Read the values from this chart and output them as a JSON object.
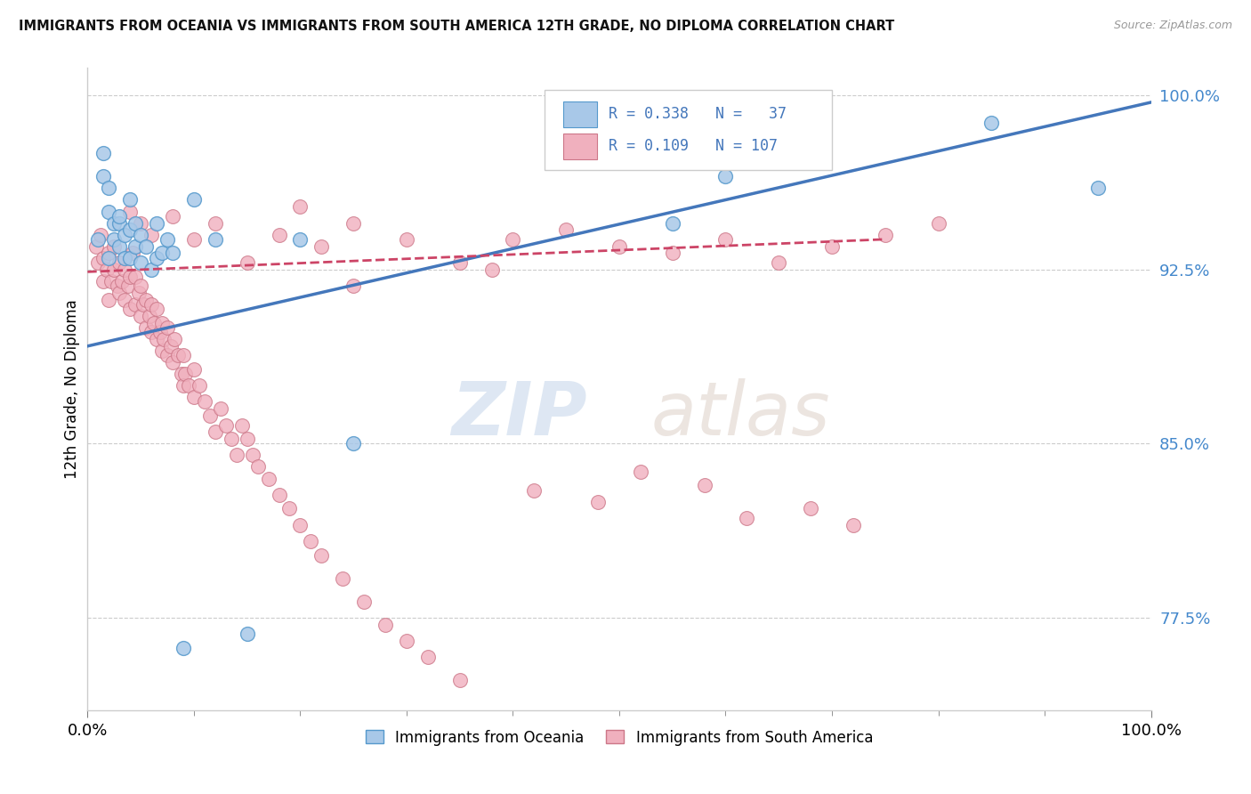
{
  "title": "IMMIGRANTS FROM OCEANIA VS IMMIGRANTS FROM SOUTH AMERICA 12TH GRADE, NO DIPLOMA CORRELATION CHART",
  "source": "Source: ZipAtlas.com",
  "xlabel_bottom": "Immigrants from Oceania",
  "xlabel_bottom2": "Immigrants from South America",
  "ylabel": "12th Grade, No Diploma",
  "xmin": 0.0,
  "xmax": 1.0,
  "ymin": 0.735,
  "ymax": 1.012,
  "yticks_right": [
    0.775,
    0.85,
    0.925,
    1.0
  ],
  "ytick_labels_right": [
    "77.5%",
    "85.0%",
    "92.5%",
    "100.0%"
  ],
  "xtick_labels": [
    "0.0%",
    "100.0%"
  ],
  "legend_r1": "R = 0.338",
  "legend_n1": "N =  37",
  "legend_r2": "R = 0.109",
  "legend_n2": "N = 107",
  "color_blue": "#a8c8e8",
  "color_blue_edge": "#5599cc",
  "color_pink": "#f0b0be",
  "color_pink_edge": "#cc7788",
  "color_line_blue": "#4477bb",
  "color_line_pink": "#cc4466",
  "color_right_axis": "#4488cc",
  "color_title": "#111111",
  "color_source": "#999999",
  "blue_x": [
    0.01,
    0.015,
    0.015,
    0.02,
    0.02,
    0.025,
    0.025,
    0.03,
    0.03,
    0.035,
    0.035,
    0.04,
    0.04,
    0.045,
    0.045,
    0.05,
    0.05,
    0.055,
    0.06,
    0.065,
    0.065,
    0.07,
    0.075,
    0.08,
    0.09,
    0.1,
    0.12,
    0.15,
    0.2,
    0.25,
    0.04,
    0.03,
    0.02,
    0.55,
    0.6,
    0.85,
    0.95
  ],
  "blue_y": [
    0.938,
    0.965,
    0.975,
    0.95,
    0.96,
    0.938,
    0.945,
    0.935,
    0.945,
    0.93,
    0.94,
    0.93,
    0.942,
    0.935,
    0.945,
    0.928,
    0.94,
    0.935,
    0.925,
    0.93,
    0.945,
    0.932,
    0.938,
    0.932,
    0.762,
    0.955,
    0.938,
    0.768,
    0.938,
    0.85,
    0.955,
    0.948,
    0.93,
    0.945,
    0.965,
    0.988,
    0.96
  ],
  "pink_x": [
    0.008,
    0.01,
    0.012,
    0.015,
    0.015,
    0.018,
    0.02,
    0.02,
    0.022,
    0.025,
    0.025,
    0.028,
    0.03,
    0.03,
    0.032,
    0.035,
    0.035,
    0.038,
    0.04,
    0.04,
    0.042,
    0.045,
    0.045,
    0.048,
    0.05,
    0.05,
    0.052,
    0.055,
    0.055,
    0.058,
    0.06,
    0.06,
    0.062,
    0.065,
    0.065,
    0.068,
    0.07,
    0.07,
    0.072,
    0.075,
    0.075,
    0.078,
    0.08,
    0.082,
    0.085,
    0.088,
    0.09,
    0.09,
    0.092,
    0.095,
    0.1,
    0.1,
    0.105,
    0.11,
    0.115,
    0.12,
    0.125,
    0.13,
    0.135,
    0.14,
    0.145,
    0.15,
    0.155,
    0.16,
    0.17,
    0.18,
    0.19,
    0.2,
    0.21,
    0.22,
    0.24,
    0.26,
    0.28,
    0.3,
    0.32,
    0.35,
    0.22,
    0.25,
    0.18,
    0.15,
    0.12,
    0.1,
    0.08,
    0.06,
    0.05,
    0.04,
    0.38,
    0.4,
    0.55,
    0.6,
    0.45,
    0.5,
    0.35,
    0.3,
    0.25,
    0.2,
    0.65,
    0.7,
    0.75,
    0.8,
    0.42,
    0.48,
    0.52,
    0.58,
    0.62,
    0.68,
    0.72
  ],
  "pink_y": [
    0.935,
    0.928,
    0.94,
    0.92,
    0.93,
    0.925,
    0.912,
    0.932,
    0.92,
    0.925,
    0.935,
    0.918,
    0.915,
    0.928,
    0.92,
    0.912,
    0.925,
    0.918,
    0.908,
    0.922,
    0.932,
    0.91,
    0.922,
    0.915,
    0.905,
    0.918,
    0.91,
    0.9,
    0.912,
    0.905,
    0.898,
    0.91,
    0.902,
    0.895,
    0.908,
    0.898,
    0.89,
    0.902,
    0.895,
    0.888,
    0.9,
    0.892,
    0.885,
    0.895,
    0.888,
    0.88,
    0.875,
    0.888,
    0.88,
    0.875,
    0.87,
    0.882,
    0.875,
    0.868,
    0.862,
    0.855,
    0.865,
    0.858,
    0.852,
    0.845,
    0.858,
    0.852,
    0.845,
    0.84,
    0.835,
    0.828,
    0.822,
    0.815,
    0.808,
    0.802,
    0.792,
    0.782,
    0.772,
    0.765,
    0.758,
    0.748,
    0.935,
    0.918,
    0.94,
    0.928,
    0.945,
    0.938,
    0.948,
    0.94,
    0.945,
    0.95,
    0.925,
    0.938,
    0.932,
    0.938,
    0.942,
    0.935,
    0.928,
    0.938,
    0.945,
    0.952,
    0.928,
    0.935,
    0.94,
    0.945,
    0.83,
    0.825,
    0.838,
    0.832,
    0.818,
    0.822,
    0.815
  ],
  "blue_trend_x": [
    0.0,
    1.0
  ],
  "blue_trend_y": [
    0.892,
    0.997
  ],
  "pink_trend_x": [
    0.0,
    0.75
  ],
  "pink_trend_y": [
    0.924,
    0.938
  ]
}
